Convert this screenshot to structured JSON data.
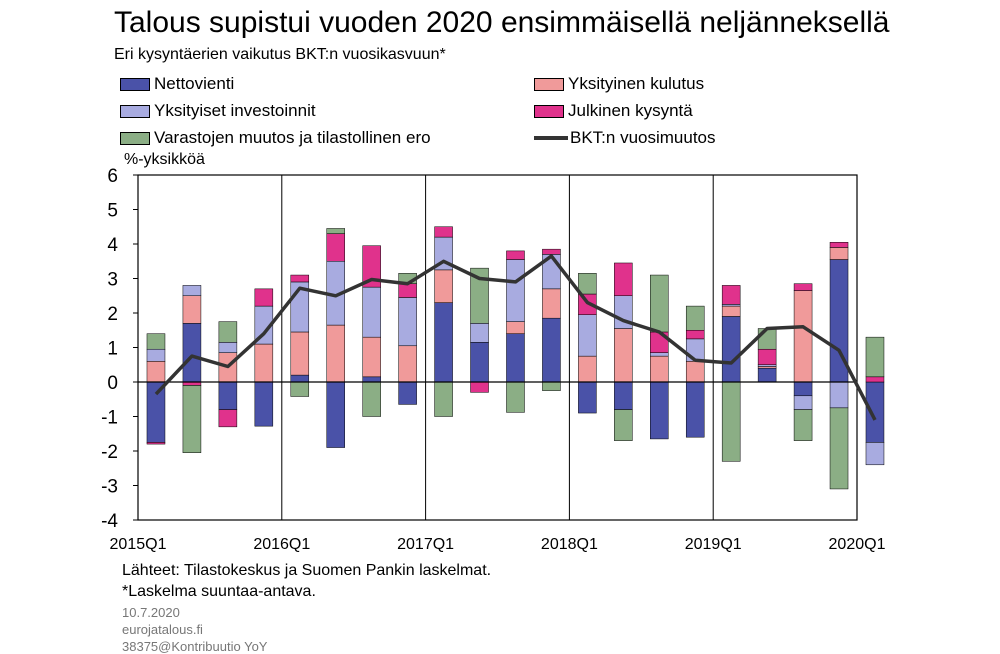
{
  "header": {
    "title": "Talous supistui vuoden 2020 ensimmäisellä neljänneksellä",
    "subtitle": "Eri kysyntäerien vaikutus BKT:n vuosikasvuun*"
  },
  "legend": [
    {
      "label": "Nettovienti",
      "color": "#4a52a8",
      "kind": "bar"
    },
    {
      "label": "Yksityinen kulutus",
      "color": "#f09a9a",
      "kind": "bar"
    },
    {
      "label": "Yksityiset investoinnit",
      "color": "#a8abe0",
      "kind": "bar"
    },
    {
      "label": "Julkinen kysyntä",
      "color": "#e0328c",
      "kind": "bar"
    },
    {
      "label": "Varastojen muutos ja tilastollinen ero",
      "color": "#8bae85",
      "kind": "bar"
    },
    {
      "label": "BKT:n vuosimuutos",
      "color": "#333333",
      "kind": "line"
    }
  ],
  "unit_label": "%-yksikköä",
  "footer": {
    "sources": "Lähteet: Tilastokeskus ja Suomen Pankin laskelmat.",
    "note": "*Laskelma suuntaa-antava.",
    "date": "10.7.2020",
    "site": "eurojatalous.fi",
    "code": "38375@Kontribuutio YoY"
  },
  "chart_data": {
    "type": "bar",
    "stacked": true,
    "x": [
      "2015Q1",
      "2015Q2",
      "2015Q3",
      "2015Q4",
      "2016Q1",
      "2016Q2",
      "2016Q3",
      "2016Q4",
      "2017Q1",
      "2017Q2",
      "2017Q3",
      "2017Q4",
      "2018Q1",
      "2018Q2",
      "2018Q3",
      "2018Q4",
      "2019Q1",
      "2019Q2",
      "2019Q3",
      "2019Q4",
      "2020Q1"
    ],
    "x_tick_labels": [
      "2015Q1",
      "2016Q1",
      "2017Q1",
      "2018Q1",
      "2019Q1",
      "2020Q1"
    ],
    "ylim": [
      -4,
      6
    ],
    "yticks": [
      -4,
      -3,
      -2,
      -1,
      0,
      1,
      2,
      3,
      4,
      5,
      6
    ],
    "ylabel": "%-yksikköä",
    "grid": "vertical lines at year starts",
    "series": [
      {
        "name": "Nettovienti",
        "color": "#4a52a8",
        "values": [
          -1.75,
          1.7,
          -0.8,
          -1.28,
          0.2,
          -1.9,
          0.15,
          -0.65,
          2.3,
          1.15,
          1.4,
          1.85,
          -0.9,
          -0.8,
          -1.65,
          -1.6,
          1.9,
          0.4,
          -0.4,
          3.55,
          -1.75
        ]
      },
      {
        "name": "Yksityinen kulutus",
        "color": "#f09a9a",
        "values": [
          0.6,
          0.8,
          0.85,
          1.1,
          1.25,
          1.65,
          1.15,
          1.05,
          0.95,
          0.0,
          0.35,
          0.85,
          0.75,
          1.55,
          0.75,
          0.6,
          0.3,
          0.05,
          2.65,
          0.35,
          0.0
        ]
      },
      {
        "name": "Yksityiset investoinnit",
        "color": "#a8abe0",
        "values": [
          0.35,
          0.3,
          0.3,
          1.1,
          1.45,
          1.85,
          1.45,
          1.4,
          0.95,
          0.55,
          1.8,
          1.0,
          1.2,
          0.95,
          0.1,
          0.65,
          0.05,
          0.05,
          -0.4,
          -0.75,
          -0.65
        ]
      },
      {
        "name": "Julkinen kysyntä",
        "color": "#e0328c",
        "values": [
          -0.05,
          -0.1,
          -0.5,
          0.5,
          0.2,
          0.8,
          1.2,
          0.4,
          0.3,
          -0.3,
          0.25,
          0.15,
          0.6,
          0.95,
          0.6,
          0.25,
          0.55,
          0.45,
          0.2,
          0.15,
          0.15
        ]
      },
      {
        "name": "Varastojen muutos ja tilastollinen ero",
        "color": "#8bae85",
        "values": [
          0.45,
          -1.95,
          0.6,
          0.0,
          -0.42,
          0.15,
          -1.0,
          0.3,
          -1.0,
          1.6,
          -0.88,
          -0.25,
          0.6,
          -0.9,
          1.65,
          0.7,
          -2.3,
          0.6,
          -0.9,
          -2.35,
          1.15
        ]
      }
    ],
    "line": {
      "name": "BKT:n vuosimuutos",
      "color": "#333333",
      "values": [
        -0.35,
        0.75,
        0.45,
        1.4,
        2.72,
        2.5,
        2.97,
        2.85,
        3.5,
        3.0,
        2.9,
        3.65,
        2.3,
        1.78,
        1.45,
        0.63,
        0.55,
        1.55,
        1.6,
        0.92,
        -1.1
      ]
    }
  }
}
